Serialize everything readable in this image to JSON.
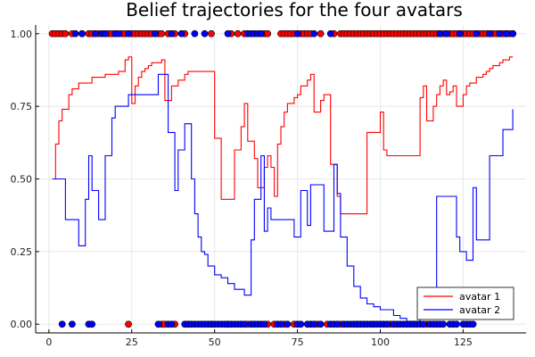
{
  "chart_data": {
    "type": "line",
    "title": "Belief trajectories for the four avatars",
    "xlabel": "",
    "ylabel": "",
    "xlim": [
      -4,
      144
    ],
    "ylim": [
      -0.03,
      1.03
    ],
    "xticks": [
      0,
      25,
      50,
      75,
      100,
      125
    ],
    "yticks": [
      0.0,
      0.25,
      0.5,
      0.75,
      1.0
    ],
    "xtick_labels": [
      "0",
      "25",
      "50",
      "75",
      "100",
      "125"
    ],
    "ytick_labels": [
      "0.00",
      "0.25",
      "0.50",
      "0.75",
      "1.00"
    ],
    "grid": true,
    "legend_position": "bottom-right",
    "series": [
      {
        "name": "avatar 1",
        "color": "#ff0000",
        "x": [
          1,
          2,
          3,
          4,
          5,
          6,
          7,
          8,
          9,
          10,
          11,
          12,
          13,
          15,
          17,
          19,
          21,
          23,
          24,
          25,
          26,
          27,
          28,
          29,
          30,
          31,
          32,
          33,
          34,
          35,
          36,
          37,
          38,
          39,
          40,
          41,
          42,
          43,
          44,
          46,
          48,
          50,
          51,
          52,
          54,
          56,
          57,
          58,
          59,
          60,
          61,
          62,
          63,
          64,
          65,
          66,
          67,
          68,
          69,
          70,
          71,
          72,
          73,
          74,
          75,
          76,
          77,
          78,
          79,
          80,
          81,
          82,
          83,
          84,
          85,
          86,
          87,
          88,
          89,
          90,
          92,
          94,
          96,
          98,
          100,
          101,
          102,
          103,
          104,
          106,
          108,
          110,
          112,
          113,
          114,
          115,
          116,
          117,
          118,
          119,
          120,
          121,
          122,
          123,
          124,
          125,
          126,
          127,
          128,
          129,
          130,
          131,
          132,
          133,
          134,
          135,
          136,
          137,
          138,
          139,
          140
        ],
        "y": [
          0.5,
          0.62,
          0.7,
          0.74,
          0.74,
          0.79,
          0.81,
          0.81,
          0.83,
          0.83,
          0.83,
          0.83,
          0.85,
          0.85,
          0.86,
          0.86,
          0.87,
          0.91,
          0.92,
          0.76,
          0.82,
          0.85,
          0.87,
          0.88,
          0.89,
          0.9,
          0.9,
          0.9,
          0.91,
          0.77,
          0.77,
          0.82,
          0.82,
          0.84,
          0.84,
          0.86,
          0.87,
          0.87,
          0.87,
          0.87,
          0.87,
          0.64,
          0.64,
          0.43,
          0.43,
          0.6,
          0.6,
          0.68,
          0.76,
          0.63,
          0.63,
          0.57,
          0.47,
          0.47,
          0.54,
          0.58,
          0.54,
          0.44,
          0.62,
          0.68,
          0.73,
          0.76,
          0.76,
          0.78,
          0.79,
          0.82,
          0.82,
          0.84,
          0.86,
          0.73,
          0.73,
          0.77,
          0.79,
          0.79,
          0.55,
          0.55,
          0.44,
          0.38,
          0.38,
          0.38,
          0.38,
          0.38,
          0.66,
          0.66,
          0.73,
          0.6,
          0.58,
          0.58,
          0.58,
          0.58,
          0.58,
          0.58,
          0.78,
          0.82,
          0.7,
          0.7,
          0.75,
          0.79,
          0.82,
          0.84,
          0.79,
          0.8,
          0.82,
          0.75,
          0.75,
          0.79,
          0.82,
          0.83,
          0.83,
          0.85,
          0.85,
          0.86,
          0.87,
          0.88,
          0.89,
          0.89,
          0.9,
          0.91,
          0.91,
          0.92,
          0.92
        ]
      },
      {
        "name": "avatar 2",
        "color": "#0000ff",
        "x": [
          1,
          2,
          3,
          4,
          5,
          6,
          7,
          8,
          9,
          10,
          11,
          12,
          13,
          14,
          15,
          17,
          19,
          20,
          21,
          22,
          23,
          24,
          25,
          26,
          28,
          30,
          32,
          33,
          34,
          35,
          36,
          37,
          38,
          39,
          40,
          41,
          42,
          43,
          44,
          45,
          46,
          47,
          48,
          49,
          50,
          52,
          54,
          56,
          58,
          59,
          60,
          61,
          62,
          63,
          64,
          65,
          66,
          67,
          68,
          70,
          72,
          74,
          75,
          76,
          77,
          78,
          79,
          80,
          81,
          82,
          83,
          84,
          85,
          86,
          87,
          88,
          90,
          92,
          94,
          96,
          98,
          100,
          102,
          104,
          106,
          108,
          110,
          112,
          113,
          115,
          117,
          118,
          119,
          120,
          121,
          122,
          123,
          124,
          126,
          128,
          129,
          131,
          133,
          135,
          137,
          138,
          140
        ],
        "y": [
          0.5,
          0.5,
          0.5,
          0.5,
          0.36,
          0.36,
          0.36,
          0.36,
          0.27,
          0.27,
          0.43,
          0.58,
          0.46,
          0.46,
          0.36,
          0.58,
          0.71,
          0.75,
          0.75,
          0.75,
          0.75,
          0.79,
          0.79,
          0.79,
          0.79,
          0.79,
          0.79,
          0.86,
          0.86,
          0.86,
          0.66,
          0.66,
          0.46,
          0.6,
          0.6,
          0.69,
          0.69,
          0.5,
          0.38,
          0.3,
          0.25,
          0.24,
          0.2,
          0.2,
          0.17,
          0.16,
          0.14,
          0.12,
          0.12,
          0.1,
          0.1,
          0.29,
          0.43,
          0.43,
          0.58,
          0.32,
          0.4,
          0.36,
          0.36,
          0.36,
          0.36,
          0.3,
          0.3,
          0.46,
          0.46,
          0.34,
          0.48,
          0.48,
          0.48,
          0.48,
          0.32,
          0.32,
          0.32,
          0.55,
          0.45,
          0.3,
          0.2,
          0.13,
          0.09,
          0.07,
          0.06,
          0.05,
          0.05,
          0.03,
          0.02,
          0.01,
          0.01,
          0.05,
          0.1,
          0.06,
          0.44,
          0.44,
          0.44,
          0.44,
          0.44,
          0.44,
          0.3,
          0.25,
          0.22,
          0.47,
          0.29,
          0.29,
          0.58,
          0.58,
          0.67,
          0.67,
          0.74
        ]
      }
    ],
    "scatter_series": [
      {
        "color": "#ff0000",
        "x": [
          1,
          2,
          3,
          4,
          5,
          7,
          10,
          12,
          13,
          15,
          18,
          19,
          22,
          23,
          25,
          26,
          27,
          28,
          29,
          30,
          31,
          33,
          34,
          36,
          38,
          41,
          49,
          55,
          57,
          59,
          65,
          66,
          70,
          71,
          72,
          73,
          74,
          76,
          77,
          78,
          79,
          82,
          86,
          88,
          89,
          90,
          91,
          92,
          93,
          94,
          95,
          96,
          97,
          98,
          99,
          100,
          101,
          102,
          103,
          104,
          105,
          106,
          107,
          108,
          109,
          110,
          111,
          112,
          113,
          114,
          115,
          116,
          117,
          118,
          119,
          120,
          121,
          122,
          123,
          124,
          125,
          126,
          127,
          128,
          129,
          130,
          131,
          132,
          133,
          134,
          135,
          136,
          137,
          138,
          139,
          140
        ],
        "y": [
          1,
          1,
          1,
          1,
          1,
          1,
          1,
          1,
          1,
          1,
          1,
          1,
          1,
          1,
          1,
          1,
          1,
          1,
          1,
          1,
          1,
          1,
          1,
          1,
          1,
          1,
          1,
          1,
          1,
          1,
          1,
          1,
          1,
          1,
          1,
          1,
          1,
          1,
          1,
          1,
          1,
          1,
          1,
          1,
          1,
          1,
          1,
          1,
          1,
          1,
          1,
          1,
          1,
          1,
          1,
          1,
          1,
          1,
          1,
          1,
          1,
          1,
          1,
          1,
          1,
          1,
          1,
          1,
          1,
          1,
          1,
          1,
          1,
          1,
          1,
          1,
          1,
          1,
          1,
          1,
          1,
          1,
          1,
          1,
          1,
          1,
          1,
          1,
          1,
          1,
          1,
          1,
          1,
          1,
          1,
          1
        ]
      },
      {
        "color": "#0000ff",
        "x": [
          8,
          10,
          14,
          16,
          17,
          20,
          21,
          24,
          32,
          37,
          40,
          44,
          47,
          54,
          60,
          61,
          62,
          63,
          64,
          75,
          80,
          85,
          118,
          120,
          124,
          129,
          133,
          136,
          138,
          140
        ],
        "y": [
          1,
          1,
          1,
          1,
          1,
          1,
          1,
          1,
          1,
          1,
          1,
          1,
          1,
          1,
          1,
          1,
          1,
          1,
          1,
          1,
          1,
          1,
          1,
          1,
          1,
          1,
          1,
          1,
          1,
          1
        ]
      },
      {
        "color": "#ff0000",
        "x": [
          24,
          34,
          35,
          38,
          42,
          49,
          54,
          60,
          66,
          68,
          71,
          74,
          81,
          84,
          88,
          93,
          98,
          103,
          114
        ],
        "y": [
          0,
          0,
          0,
          0,
          0,
          0,
          0,
          0,
          0,
          0,
          0,
          0,
          0,
          0,
          0,
          0,
          0,
          0,
          0
        ]
      },
      {
        "color": "#0000ff",
        "x": [
          4,
          7,
          12,
          13,
          33,
          36,
          37,
          41,
          42,
          43,
          44,
          45,
          46,
          47,
          48,
          49,
          50,
          51,
          52,
          53,
          54,
          55,
          56,
          57,
          58,
          59,
          61,
          62,
          63,
          64,
          65,
          69,
          70,
          72,
          75,
          76,
          78,
          79,
          80,
          82,
          85,
          86,
          87,
          89,
          90,
          91,
          92,
          93,
          94,
          95,
          96,
          97,
          98,
          99,
          100,
          101,
          102,
          104,
          105,
          106,
          107,
          108,
          109,
          110,
          111,
          112,
          113,
          115,
          116,
          117,
          118,
          119,
          121,
          122,
          123,
          125,
          126,
          127,
          128
        ],
        "y": [
          0,
          0,
          0,
          0,
          0,
          0,
          0,
          0,
          0,
          0,
          0,
          0,
          0,
          0,
          0,
          0,
          0,
          0,
          0,
          0,
          0,
          0,
          0,
          0,
          0,
          0,
          0,
          0,
          0,
          0,
          0,
          0,
          0,
          0,
          0,
          0,
          0,
          0,
          0,
          0,
          0,
          0,
          0,
          0,
          0,
          0,
          0,
          0,
          0,
          0,
          0,
          0,
          0,
          0,
          0,
          0,
          0,
          0,
          0,
          0,
          0,
          0,
          0,
          0,
          0,
          0,
          0,
          0,
          0,
          0,
          0,
          0,
          0,
          0,
          0,
          0,
          0,
          0,
          0
        ]
      }
    ]
  }
}
